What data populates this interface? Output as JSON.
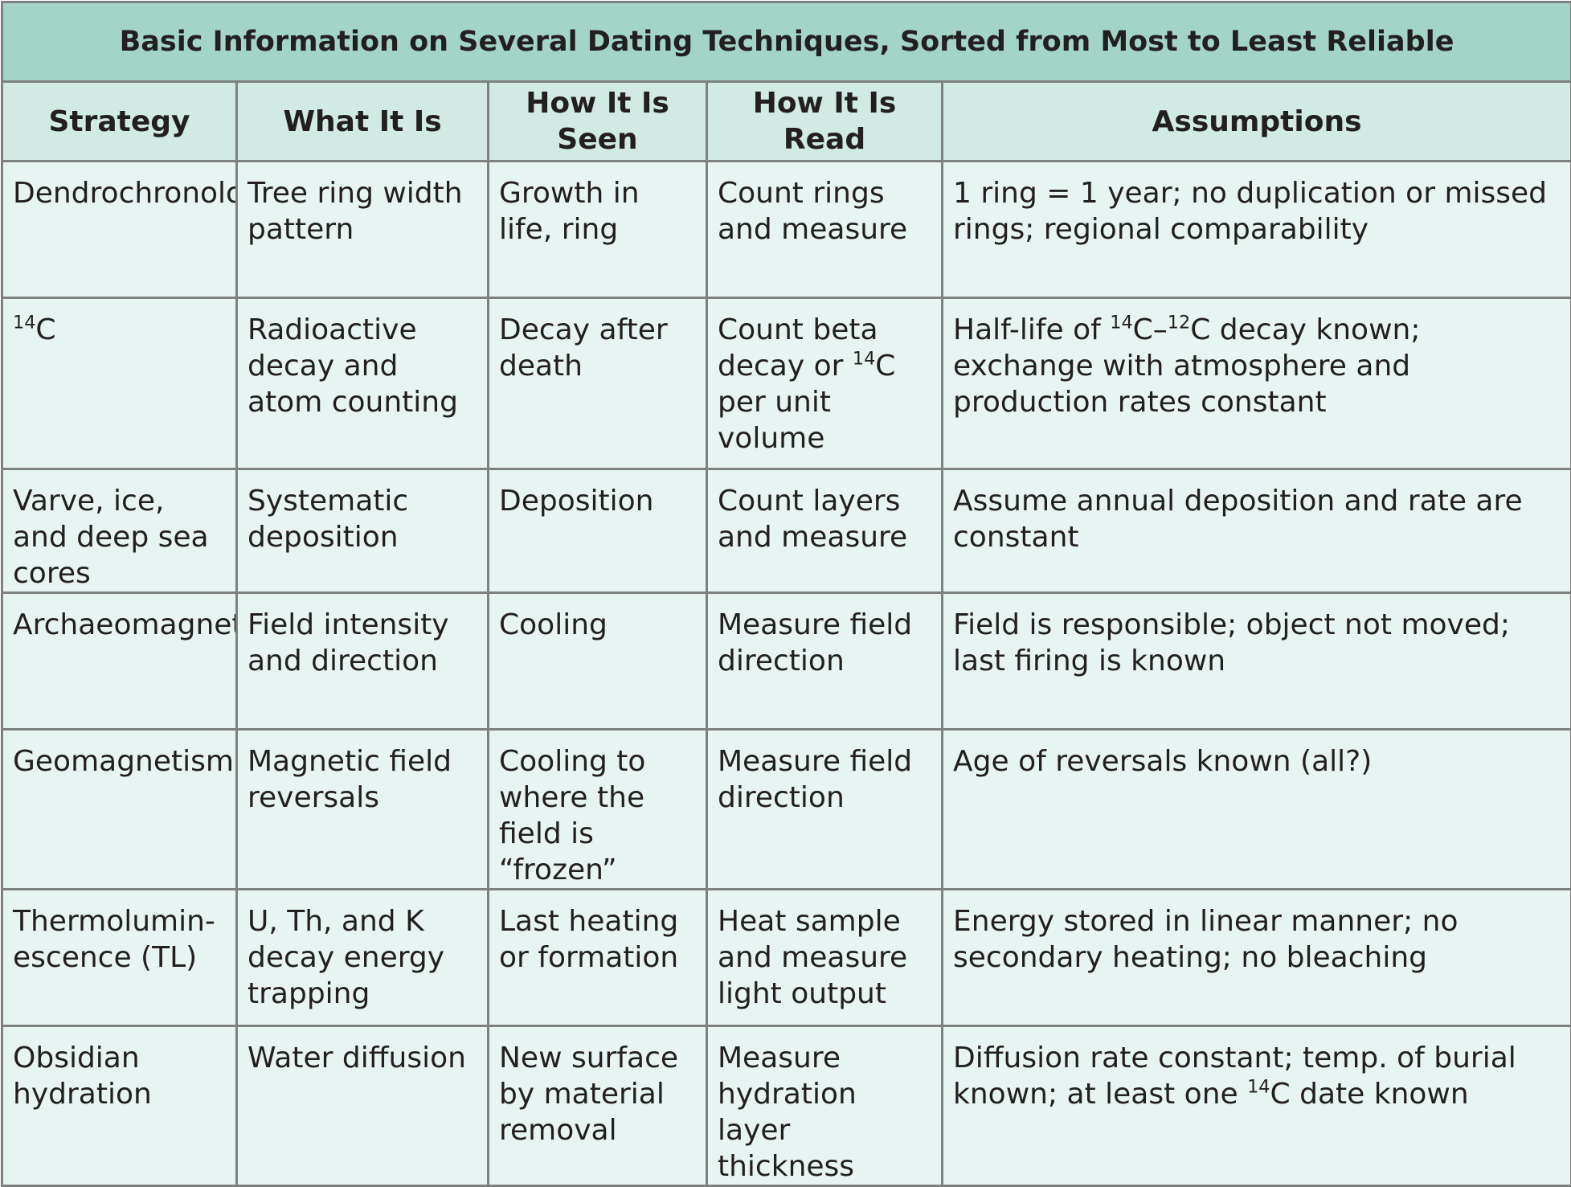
{
  "title": "Basic Information on Several Dating Techniques, Sorted from Most to Least Reliable",
  "headers": [
    "Strategy",
    "What It Is",
    "How It Is Seen",
    "How It Is Read",
    "Assumptions"
  ],
  "rows": [
    {
      "strategy": "Dendrochronology",
      "what": "Tree ring width pattern",
      "seen": "Growth in life, ring",
      "read": "Count rings and measure",
      "assumptions": "1 ring = 1 year; no duplication or missed rings; regional comparability"
    },
    {
      "strategy": [
        "14",
        "C"
      ],
      "what": "Radioactive decay and atom counting",
      "seen": "Decay after death",
      "read": [
        "Count beta decay or ",
        "14",
        "C per unit volume"
      ],
      "assumptions": [
        "Half-life of ",
        "14",
        "C–",
        "12",
        "C decay known; exchange with atmosphere and production rates constant"
      ]
    },
    {
      "strategy": "Varve, ice, and deep sea cores",
      "what": "Systematic deposition",
      "seen": "Deposition",
      "read": "Count layers and measure",
      "assumptions": "Assume annual deposition and rate are constant"
    },
    {
      "strategy": "Archaeomagnetism",
      "what": "Field intensity and direction",
      "seen": "Cooling",
      "read": "Measure field direction",
      "assumptions": "Field is responsible; object not moved; last firing is known"
    },
    {
      "strategy": "Geomagnetism",
      "what": "Magnetic field reversals",
      "seen": "Cooling to where the field is “frozen”",
      "read": "Measure field direction",
      "assumptions": "Age of reversals known (all?)"
    },
    {
      "strategy": "Thermolumin-escence (TL)",
      "what": "U, Th, and K decay energy trapping",
      "seen": "Last heating or formation",
      "read": "Heat sample and measure light output",
      "assumptions": "Energy stored in linear manner; no secondary heating; no bleaching"
    },
    {
      "strategy": "Obsidian hydration",
      "what": "Water diffusion",
      "seen": "New surface by material removal",
      "read": "Measure hydration layer thickness",
      "assumptions": [
        "Diffusion rate constant; temp. of burial known; at least one ",
        "14",
        "C date known"
      ]
    }
  ]
}
